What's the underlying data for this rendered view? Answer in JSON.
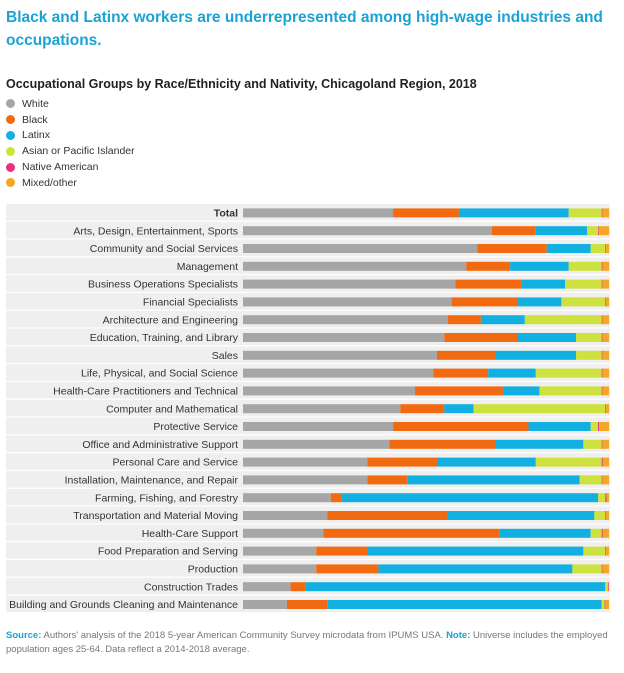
{
  "headline": "Black and Latinx workers are underrepresented among high-wage industries and occupations.",
  "chart_title": "Occupational Groups by Race/Ethnicity and Nativity, Chicagoland Region, 2018",
  "colors": {
    "White": "#a6a6a6",
    "Black": "#f26a0f",
    "Latinx": "#12b0e0",
    "Asian or Pacific Islander": "#cde23e",
    "Native American": "#e8317a",
    "Mixed/other": "#f5a623"
  },
  "source": {
    "label_source": "Source:",
    "source_text": "Authors' analysis of the 2018 5-year American Community Survey microdata from IPUMS USA.",
    "label_note": "Note:",
    "note_text": "Universe includes the employed population ages 25-64. Data reflect a 2014-2018 average."
  },
  "chart_data": {
    "type": "bar",
    "orientation": "horizontal",
    "stacked": true,
    "unit": "percent share",
    "xlim": [
      0,
      100
    ],
    "series_names": [
      "White",
      "Black",
      "Latinx",
      "Asian or Pacific Islander",
      "Native American",
      "Mixed/other"
    ],
    "categories": [
      "Total",
      "Arts, Design, Entertainment, Sports",
      "Community and Social Services",
      "Management",
      "Business Operations Specialists",
      "Financial Specialists",
      "Architecture and Engineering",
      "Education, Training, and Library",
      "Sales",
      "Life, Physical, and Social Science",
      "Health-Care Practitioners and Technical",
      "Computer and Mathematical",
      "Protective Service",
      "Office and Administrative Support",
      "Personal Care and Service",
      "Installation, Maintenance, and Repair",
      "Farming, Fishing, and Forestry",
      "Transportation and Material Moving",
      "Health-Care Support",
      "Food Preparation and Serving",
      "Production",
      "Construction Trades",
      "Building and Grounds Cleaning and Maintenance"
    ],
    "series": [
      {
        "name": "White",
        "values": [
          41,
          68,
          64,
          61,
          58,
          57,
          56,
          55,
          53,
          52,
          47,
          43,
          41,
          40,
          34,
          34,
          24,
          23,
          22,
          20,
          20,
          13,
          12
        ]
      },
      {
        "name": "Black",
        "values": [
          18,
          12,
          19,
          12,
          18,
          18,
          9,
          20,
          16,
          15,
          24,
          12,
          37,
          29,
          19,
          11,
          3,
          33,
          48,
          14,
          17,
          4,
          11
        ]
      },
      {
        "name": "Latinx",
        "values": [
          30,
          14,
          12,
          16,
          12,
          12,
          12,
          16,
          22,
          13,
          10,
          8,
          17,
          24,
          27,
          47,
          70,
          40,
          25,
          59,
          53,
          82,
          75
        ]
      },
      {
        "name": "Asian or Pacific Islander",
        "values": [
          9,
          3,
          4,
          9,
          10,
          12,
          21,
          7,
          7,
          18,
          17,
          36,
          2,
          5,
          18,
          6,
          2,
          3,
          3,
          6,
          8,
          0.7,
          0.8
        ]
      },
      {
        "name": "Native American",
        "values": [
          0.2,
          0.2,
          0.2,
          0.2,
          0.2,
          0.2,
          0.2,
          0.2,
          0.2,
          0.2,
          0.2,
          0.2,
          0.3,
          0.2,
          0.3,
          0.2,
          0.3,
          0.2,
          0.3,
          0.2,
          0.2,
          0.2,
          0.2
        ]
      },
      {
        "name": "Mixed/other",
        "values": [
          1.8,
          2.8,
          0.8,
          1.8,
          1.8,
          0.8,
          1.8,
          1.8,
          1.8,
          1.8,
          1.8,
          0.8,
          2.7,
          1.8,
          1.7,
          1.8,
          0.7,
          0.8,
          1.7,
          0.8,
          1.8,
          0.1,
          1
        ]
      }
    ]
  }
}
